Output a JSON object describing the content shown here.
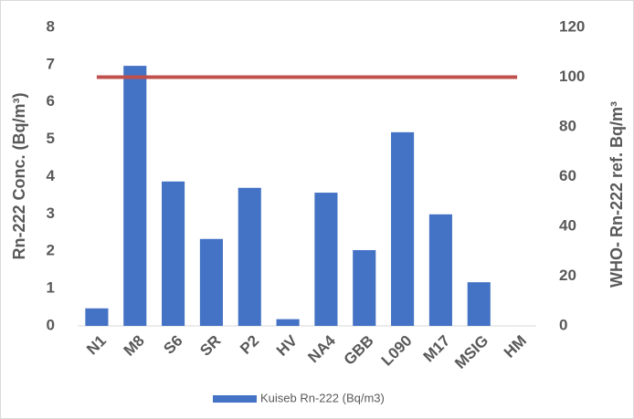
{
  "chart_data": {
    "type": "combo",
    "categories": [
      "N1",
      "M8",
      "S6",
      "SR",
      "P2",
      "HV",
      "NA4",
      "GBB",
      "L090",
      "M17",
      "MSIG",
      "HM"
    ],
    "series": [
      {
        "name": "Kuiseb Rn-222  (Bq/m3)",
        "type": "bar",
        "color": "#4472c4",
        "values": [
          0.47,
          6.97,
          3.87,
          2.33,
          3.7,
          0.18,
          3.57,
          2.03,
          5.19,
          2.99,
          1.17,
          0
        ]
      },
      {
        "type": "line",
        "axis": "y2",
        "color": "#c0504d",
        "values": [
          100,
          100,
          100,
          100,
          100,
          100,
          100,
          100,
          100,
          100,
          100,
          100
        ]
      }
    ],
    "y_label": "Rn-222 Conc. (Bq/m³)",
    "y2_label": "WHO- Rn-222 ref. Bq/m³",
    "ylim": [
      0,
      8
    ],
    "yticks": [
      0,
      1,
      2,
      3,
      4,
      5,
      6,
      7,
      8
    ],
    "y2lim": [
      0,
      120
    ],
    "y2ticks": [
      0,
      20,
      40,
      60,
      80,
      100,
      120
    ],
    "grid": false,
    "legend": "bottom"
  }
}
